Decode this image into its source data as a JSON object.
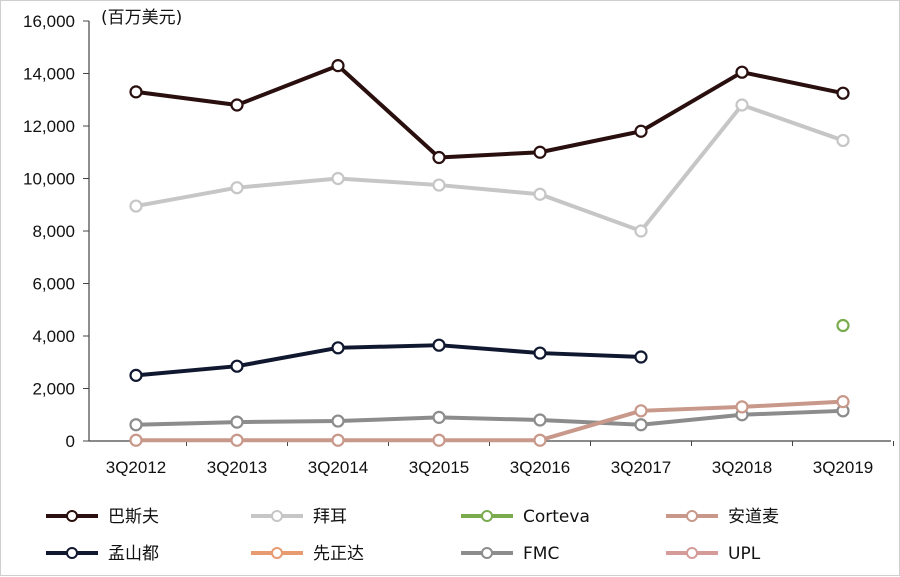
{
  "chart_data": {
    "type": "line",
    "unit_label": "(百万美元)",
    "categories": [
      "3Q2012",
      "3Q2013",
      "3Q2014",
      "3Q2015",
      "3Q2016",
      "3Q2017",
      "3Q2018",
      "3Q2019"
    ],
    "ylim": [
      0,
      16000
    ],
    "yticks": [
      "0",
      "2,000",
      "4,000",
      "6,000",
      "8,000",
      "10,000",
      "12,000",
      "14,000",
      "16,000"
    ],
    "ytick_values": [
      0,
      2000,
      4000,
      6000,
      8000,
      10000,
      12000,
      14000,
      16000
    ],
    "grid": false,
    "legend_placement": "bottom",
    "series": [
      {
        "name": "巴斯夫",
        "color": "#2a0f0f",
        "values": [
          13300,
          12800,
          14300,
          10800,
          11000,
          11800,
          14050,
          13250
        ]
      },
      {
        "name": "拜耳",
        "color": "#c6c6c6",
        "values": [
          8950,
          9650,
          10000,
          9750,
          9400,
          8000,
          12800,
          11450
        ]
      },
      {
        "name": "Corteva",
        "color": "#7aab4f",
        "values": [
          null,
          null,
          null,
          null,
          null,
          null,
          null,
          4400
        ]
      },
      {
        "name": "安道麦",
        "color": "#c8988a",
        "values": [
          30,
          30,
          30,
          30,
          30,
          1150,
          1300,
          1500
        ]
      },
      {
        "name": "孟山都",
        "color": "#101830",
        "values": [
          2500,
          2850,
          3550,
          3650,
          3350,
          3200,
          null,
          null
        ]
      },
      {
        "name": "先正达",
        "color": "#e89a70",
        "values": [
          null,
          null,
          null,
          null,
          null,
          null,
          null,
          null
        ]
      },
      {
        "name": "FMC",
        "color": "#8c8c8c",
        "values": [
          620,
          720,
          760,
          900,
          800,
          620,
          1000,
          1150
        ]
      },
      {
        "name": "UPL",
        "color": "#d49b9a",
        "values": [
          null,
          null,
          null,
          null,
          null,
          null,
          null,
          null
        ]
      }
    ]
  }
}
